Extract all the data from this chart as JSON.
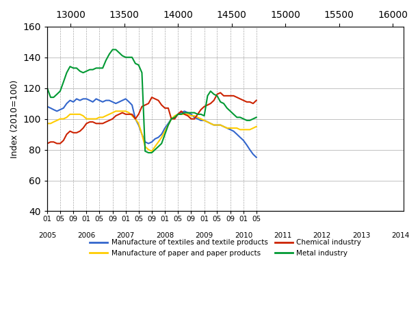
{
  "title": "",
  "ylabel": "Index (2010=100)",
  "ylim": [
    40,
    160
  ],
  "yticks": [
    40,
    60,
    80,
    100,
    120,
    140,
    160
  ],
  "background_color": "#ffffff",
  "grid_color": "#aaaaaa",
  "colors": {
    "textiles": "#3366cc",
    "paper": "#ffcc00",
    "chemical": "#cc2200",
    "metal": "#009933"
  },
  "legend": [
    "Manufacture of textiles and textile products",
    "Manufacture of paper and paper products",
    "Chemical industry",
    "Metal industry"
  ],
  "x_year_labels": [
    "2005",
    "2006",
    "2007",
    "2008",
    "2009",
    "2010",
    "2011",
    "2012",
    "2013",
    "2014"
  ],
  "x_month_labels": [
    "01",
    "05",
    "09"
  ],
  "textiles": [
    108,
    107,
    106,
    105,
    106,
    107,
    110,
    112,
    111,
    113,
    112,
    113,
    113,
    112,
    111,
    113,
    112,
    111,
    112,
    112,
    111,
    110,
    111,
    112,
    113,
    111,
    109,
    100,
    96,
    90,
    85,
    84,
    85,
    87,
    88,
    90,
    94,
    97,
    100,
    101,
    103,
    104,
    105,
    104,
    103,
    101,
    100,
    99,
    99,
    98,
    97,
    96,
    96,
    96,
    95,
    94,
    93,
    92,
    90,
    88,
    86,
    83,
    80,
    77,
    75
  ],
  "paper": [
    97,
    97,
    98,
    99,
    100,
    100,
    101,
    103,
    103,
    103,
    103,
    102,
    100,
    100,
    100,
    100,
    101,
    101,
    102,
    103,
    104,
    105,
    105,
    105,
    105,
    104,
    102,
    100,
    97,
    90,
    82,
    80,
    79,
    82,
    85,
    88,
    92,
    96,
    100,
    102,
    103,
    103,
    103,
    103,
    102,
    102,
    101,
    100,
    99,
    98,
    97,
    96,
    96,
    96,
    95,
    94,
    94,
    94,
    94,
    93,
    93,
    93,
    93,
    94,
    95
  ],
  "chemical": [
    84,
    85,
    85,
    84,
    84,
    86,
    90,
    92,
    91,
    91,
    92,
    94,
    97,
    98,
    98,
    97,
    97,
    97,
    98,
    99,
    100,
    102,
    103,
    104,
    103,
    103,
    103,
    100,
    103,
    108,
    109,
    110,
    114,
    113,
    112,
    109,
    107,
    107,
    100,
    100,
    103,
    105,
    103,
    102,
    100,
    100,
    103,
    106,
    108,
    109,
    110,
    112,
    116,
    117,
    115,
    115,
    115,
    115,
    114,
    113,
    112,
    111,
    111,
    110,
    112
  ],
  "metal": [
    120,
    114,
    114,
    116,
    118,
    124,
    130,
    134,
    133,
    133,
    131,
    130,
    131,
    132,
    132,
    133,
    133,
    133,
    138,
    142,
    145,
    145,
    143,
    141,
    140,
    140,
    140,
    136,
    135,
    130,
    79,
    78,
    78,
    80,
    82,
    84,
    90,
    96,
    100,
    101,
    103,
    103,
    104,
    104,
    104,
    104,
    103,
    103,
    102,
    115,
    118,
    116,
    115,
    111,
    110,
    107,
    105,
    103,
    101,
    101,
    100,
    99,
    99,
    100,
    101
  ]
}
